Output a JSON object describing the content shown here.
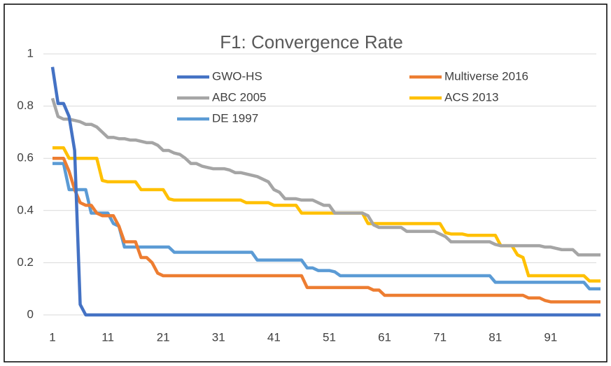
{
  "chart_data": {
    "type": "line",
    "title": "F1: Convergence Rate",
    "x": [
      1,
      2,
      3,
      4,
      5,
      6,
      7,
      8,
      9,
      10,
      11,
      12,
      13,
      14,
      15,
      16,
      17,
      18,
      19,
      20,
      21,
      22,
      23,
      24,
      25,
      26,
      27,
      28,
      29,
      30,
      31,
      32,
      33,
      34,
      35,
      36,
      37,
      38,
      39,
      40,
      41,
      42,
      43,
      44,
      45,
      46,
      47,
      48,
      49,
      50,
      51,
      52,
      53,
      54,
      55,
      56,
      57,
      58,
      59,
      60,
      61,
      62,
      63,
      64,
      65,
      66,
      67,
      68,
      69,
      70,
      71,
      72,
      73,
      74,
      75,
      76,
      77,
      78,
      79,
      80,
      81,
      82,
      83,
      84,
      85,
      86,
      87,
      88,
      89,
      90,
      91,
      92,
      93,
      94,
      95,
      96,
      97,
      98,
      99,
      100
    ],
    "xlim": [
      1,
      100
    ],
    "xticks": [
      1,
      11,
      21,
      31,
      41,
      51,
      61,
      71,
      81,
      91
    ],
    "ylim": [
      0,
      1
    ],
    "yticks": [
      0,
      0.2,
      0.4,
      0.6,
      0.8,
      1
    ],
    "grid": true,
    "series": [
      {
        "name": "GWO-HS",
        "color": "#4472c4",
        "values": [
          0.95,
          0.81,
          0.81,
          0.76,
          0.63,
          0.04,
          0,
          0,
          0,
          0,
          0,
          0,
          0,
          0,
          0,
          0,
          0,
          0,
          0,
          0,
          0,
          0,
          0,
          0,
          0,
          0,
          0,
          0,
          0,
          0,
          0,
          0,
          0,
          0,
          0,
          0,
          0,
          0,
          0,
          0,
          0,
          0,
          0,
          0,
          0,
          0,
          0,
          0,
          0,
          0,
          0,
          0,
          0,
          0,
          0,
          0,
          0,
          0,
          0,
          0,
          0,
          0,
          0,
          0,
          0,
          0,
          0,
          0,
          0,
          0,
          0,
          0,
          0,
          0,
          0,
          0,
          0,
          0,
          0,
          0,
          0,
          0,
          0,
          0,
          0,
          0,
          0,
          0,
          0,
          0,
          0,
          0,
          0,
          0,
          0,
          0,
          0,
          0,
          0,
          0
        ]
      },
      {
        "name": "Multiverse 2016",
        "color": "#ed7d31",
        "values": [
          0.6,
          0.6,
          0.6,
          0.55,
          0.48,
          0.43,
          0.42,
          0.42,
          0.39,
          0.38,
          0.38,
          0.38,
          0.34,
          0.28,
          0.28,
          0.28,
          0.22,
          0.22,
          0.2,
          0.16,
          0.15,
          0.15,
          0.15,
          0.15,
          0.15,
          0.15,
          0.15,
          0.15,
          0.15,
          0.15,
          0.15,
          0.15,
          0.15,
          0.15,
          0.15,
          0.15,
          0.15,
          0.15,
          0.15,
          0.15,
          0.15,
          0.15,
          0.15,
          0.15,
          0.15,
          0.15,
          0.105,
          0.105,
          0.105,
          0.105,
          0.105,
          0.105,
          0.105,
          0.105,
          0.105,
          0.105,
          0.105,
          0.105,
          0.095,
          0.095,
          0.075,
          0.075,
          0.075,
          0.075,
          0.075,
          0.075,
          0.075,
          0.075,
          0.075,
          0.075,
          0.075,
          0.075,
          0.075,
          0.075,
          0.075,
          0.075,
          0.075,
          0.075,
          0.075,
          0.075,
          0.075,
          0.075,
          0.075,
          0.075,
          0.075,
          0.075,
          0.065,
          0.065,
          0.065,
          0.055,
          0.05,
          0.05,
          0.05,
          0.05,
          0.05,
          0.05,
          0.05,
          0.05,
          0.05,
          0.05
        ]
      },
      {
        "name": "ABC 2005",
        "color": "#a5a5a5",
        "values": [
          0.83,
          0.76,
          0.75,
          0.75,
          0.745,
          0.74,
          0.73,
          0.73,
          0.72,
          0.7,
          0.68,
          0.68,
          0.675,
          0.675,
          0.67,
          0.67,
          0.665,
          0.66,
          0.66,
          0.65,
          0.63,
          0.63,
          0.62,
          0.615,
          0.6,
          0.58,
          0.58,
          0.57,
          0.565,
          0.56,
          0.56,
          0.56,
          0.555,
          0.545,
          0.545,
          0.54,
          0.535,
          0.53,
          0.52,
          0.51,
          0.48,
          0.47,
          0.445,
          0.445,
          0.445,
          0.44,
          0.44,
          0.44,
          0.43,
          0.42,
          0.42,
          0.39,
          0.39,
          0.39,
          0.39,
          0.39,
          0.39,
          0.38,
          0.345,
          0.335,
          0.335,
          0.335,
          0.335,
          0.335,
          0.32,
          0.32,
          0.32,
          0.32,
          0.32,
          0.32,
          0.31,
          0.3,
          0.28,
          0.28,
          0.28,
          0.28,
          0.28,
          0.28,
          0.28,
          0.28,
          0.27,
          0.265,
          0.265,
          0.265,
          0.265,
          0.265,
          0.265,
          0.265,
          0.265,
          0.26,
          0.26,
          0.255,
          0.25,
          0.25,
          0.25,
          0.23,
          0.23,
          0.23,
          0.23,
          0.23
        ]
      },
      {
        "name": "ACS 2013",
        "color": "#ffc000",
        "values": [
          0.64,
          0.64,
          0.64,
          0.6,
          0.6,
          0.6,
          0.6,
          0.6,
          0.6,
          0.515,
          0.51,
          0.51,
          0.51,
          0.51,
          0.51,
          0.51,
          0.48,
          0.48,
          0.48,
          0.48,
          0.48,
          0.445,
          0.44,
          0.44,
          0.44,
          0.44,
          0.44,
          0.44,
          0.44,
          0.44,
          0.44,
          0.44,
          0.44,
          0.44,
          0.44,
          0.43,
          0.43,
          0.43,
          0.43,
          0.43,
          0.42,
          0.42,
          0.42,
          0.42,
          0.42,
          0.39,
          0.39,
          0.39,
          0.39,
          0.39,
          0.39,
          0.39,
          0.39,
          0.39,
          0.39,
          0.39,
          0.39,
          0.35,
          0.35,
          0.35,
          0.35,
          0.35,
          0.35,
          0.35,
          0.35,
          0.35,
          0.35,
          0.35,
          0.35,
          0.35,
          0.35,
          0.315,
          0.31,
          0.31,
          0.31,
          0.305,
          0.305,
          0.305,
          0.305,
          0.305,
          0.305,
          0.265,
          0.265,
          0.265,
          0.23,
          0.22,
          0.15,
          0.15,
          0.15,
          0.15,
          0.15,
          0.15,
          0.15,
          0.15,
          0.15,
          0.15,
          0.15,
          0.13,
          0.13,
          0.13
        ]
      },
      {
        "name": "DE 1997",
        "color": "#5b9bd5",
        "values": [
          0.58,
          0.58,
          0.58,
          0.48,
          0.48,
          0.48,
          0.48,
          0.39,
          0.39,
          0.39,
          0.39,
          0.35,
          0.34,
          0.26,
          0.26,
          0.26,
          0.26,
          0.26,
          0.26,
          0.26,
          0.26,
          0.26,
          0.24,
          0.24,
          0.24,
          0.24,
          0.24,
          0.24,
          0.24,
          0.24,
          0.24,
          0.24,
          0.24,
          0.24,
          0.24,
          0.24,
          0.24,
          0.21,
          0.21,
          0.21,
          0.21,
          0.21,
          0.21,
          0.21,
          0.21,
          0.21,
          0.18,
          0.18,
          0.17,
          0.17,
          0.17,
          0.165,
          0.15,
          0.15,
          0.15,
          0.15,
          0.15,
          0.15,
          0.15,
          0.15,
          0.15,
          0.15,
          0.15,
          0.15,
          0.15,
          0.15,
          0.15,
          0.15,
          0.15,
          0.15,
          0.15,
          0.15,
          0.15,
          0.15,
          0.15,
          0.15,
          0.15,
          0.15,
          0.15,
          0.15,
          0.125,
          0.125,
          0.125,
          0.125,
          0.125,
          0.125,
          0.125,
          0.125,
          0.125,
          0.125,
          0.125,
          0.125,
          0.125,
          0.125,
          0.125,
          0.125,
          0.125,
          0.1,
          0.1,
          0.1
        ]
      }
    ]
  }
}
